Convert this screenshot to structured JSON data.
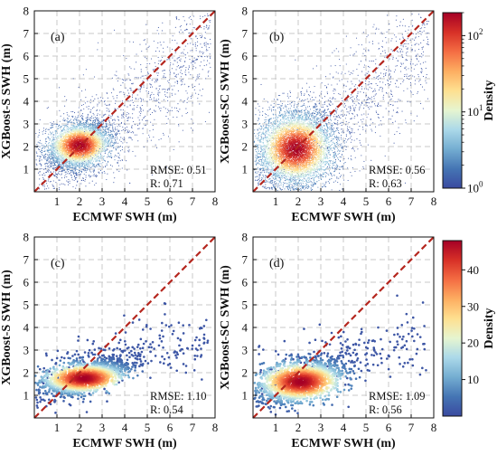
{
  "chart_data": [
    {
      "type": "scatter",
      "panel_label": "(a)",
      "xlabel": "ECMWF SWH (m)",
      "ylabel": "XGBoost-S SWH (m)",
      "xlim": [
        0,
        8
      ],
      "ylim": [
        0,
        8
      ],
      "xticks": [
        "1",
        "2",
        "3",
        "4",
        "5",
        "6",
        "7",
        "8"
      ],
      "yticks": [
        "1",
        "2",
        "3",
        "4",
        "5",
        "6",
        "7",
        "8"
      ],
      "grid": "dashed",
      "reference_line": "1:1",
      "rmse_text": "RMSE: 0.51",
      "r_text": "R: 0.71",
      "density": {
        "center": [
          2.0,
          2.05
        ],
        "spread_x": 0.9,
        "spread_y": 0.6,
        "rotation_deg": 25,
        "count": 5000,
        "style": "dense"
      }
    },
    {
      "type": "scatter",
      "panel_label": "(b)",
      "xlabel": "ECMWF SWH (m)",
      "ylabel": "XGBoost-SC SWH (m)",
      "xlim": [
        0,
        8
      ],
      "ylim": [
        0,
        8
      ],
      "xticks": [
        "1",
        "2",
        "3",
        "4",
        "5",
        "6",
        "7",
        "8"
      ],
      "yticks": [
        "1",
        "2",
        "3",
        "4",
        "5",
        "6",
        "7",
        "8"
      ],
      "grid": "dashed",
      "reference_line": "1:1",
      "rmse_text": "RMSE: 0.56",
      "r_text": "R: 0.63",
      "density": {
        "center": [
          1.9,
          1.9
        ],
        "spread_x": 1.1,
        "spread_y": 1.0,
        "rotation_deg": 42,
        "count": 6500,
        "style": "dense"
      }
    },
    {
      "type": "scatter",
      "panel_label": "(c)",
      "xlabel": "ECMWF SWH (m)",
      "ylabel": "XGBoost-S SWH (m)",
      "xlim": [
        0,
        8
      ],
      "ylim": [
        0,
        8
      ],
      "xticks": [
        "1",
        "2",
        "3",
        "4",
        "5",
        "6",
        "7",
        "8"
      ],
      "yticks": [
        "1",
        "2",
        "3",
        "4",
        "5",
        "6",
        "7",
        "8"
      ],
      "grid": "dashed",
      "reference_line": "1:1",
      "rmse_text": "RMSE: 1.10",
      "r_text": "R: 0.54",
      "density": {
        "center": [
          2.2,
          1.75
        ],
        "spread_x": 1.3,
        "spread_y": 0.45,
        "rotation_deg": 12,
        "count": 1600,
        "style": "sparse"
      }
    },
    {
      "type": "scatter",
      "panel_label": "(d)",
      "xlabel": "ECMWF SWH (m)",
      "ylabel": "XGBoost-SC SWH (m)",
      "xlim": [
        0,
        8
      ],
      "ylim": [
        0,
        8
      ],
      "xticks": [
        "1",
        "2",
        "3",
        "4",
        "5",
        "6",
        "7",
        "8"
      ],
      "yticks": [
        "1",
        "2",
        "3",
        "4",
        "5",
        "6",
        "7",
        "8"
      ],
      "grid": "dashed",
      "reference_line": "1:1",
      "rmse_text": "RMSE: 1.09",
      "r_text": "R: 0.56",
      "density": {
        "center": [
          2.1,
          1.6
        ],
        "spread_x": 1.3,
        "spread_y": 0.6,
        "rotation_deg": 12,
        "count": 1700,
        "style": "sparse"
      }
    }
  ],
  "colorbars": [
    {
      "label": "Density",
      "scale": "log",
      "range": [
        1,
        200
      ],
      "ticks": [
        {
          "value": 1,
          "base": "10",
          "exp": "0"
        },
        {
          "value": 10,
          "base": "10",
          "exp": "1"
        },
        {
          "value": 100,
          "base": "10",
          "exp": "2"
        }
      ],
      "colormap": "RdYlBu_r"
    },
    {
      "label": "Density",
      "scale": "linear",
      "range": [
        0,
        48
      ],
      "ticks": [
        {
          "value": 10,
          "text": "10"
        },
        {
          "value": 20,
          "text": "20"
        },
        {
          "value": 30,
          "text": "30"
        },
        {
          "value": 40,
          "text": "40"
        }
      ],
      "colormap": "RdYlBu_r"
    }
  ],
  "colors": {
    "reference_line": "#b5271f",
    "grid": "#c8c8c8",
    "colormap_stops": [
      "#3a4aa0",
      "#4575b4",
      "#74add1",
      "#abd9e9",
      "#e6f5d0",
      "#fee090",
      "#fdae61",
      "#f46d43",
      "#d73027",
      "#a50026"
    ]
  }
}
